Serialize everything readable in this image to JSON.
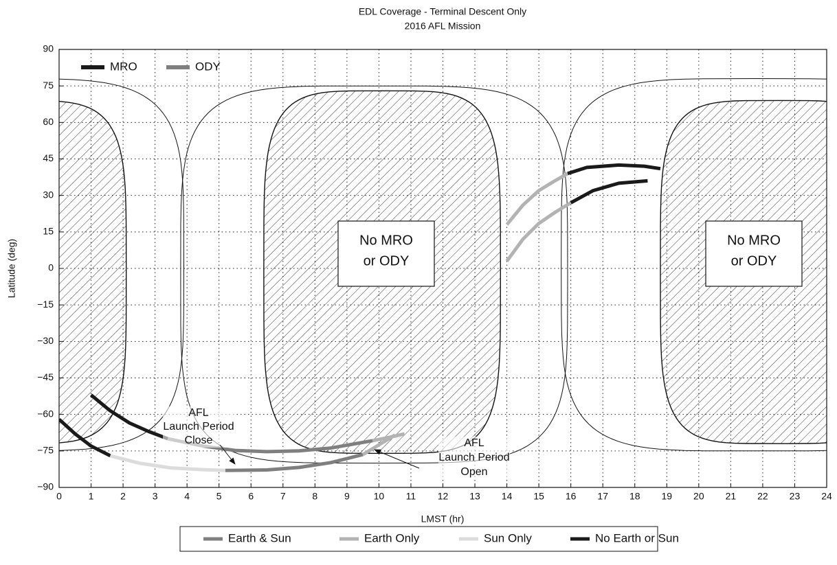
{
  "chart_data": {
    "type": "line",
    "title": "EDL Coverage - Terminal Descent Only",
    "subtitle": "2016 AFL Mission",
    "xlabel": "LMST (hr)",
    "ylabel": "Latitude (deg)",
    "xlim": [
      0,
      24
    ],
    "ylim": [
      -90,
      90
    ],
    "xticks": [
      0,
      1,
      2,
      3,
      4,
      5,
      6,
      7,
      8,
      9,
      10,
      11,
      12,
      13,
      14,
      15,
      16,
      17,
      18,
      19,
      20,
      21,
      22,
      23,
      24
    ],
    "yticks": [
      {
        "value": -90,
        "label": "−90"
      },
      {
        "value": -75,
        "label": "−75"
      },
      {
        "value": -60,
        "label": "−60"
      },
      {
        "value": -45,
        "label": "−45"
      },
      {
        "value": -30,
        "label": "−30"
      },
      {
        "value": -15,
        "label": "−15"
      },
      0,
      15,
      30,
      45,
      60,
      75,
      90
    ],
    "grid": true,
    "orbiters": [
      {
        "name": "MRO",
        "color": "#1a1a1a"
      },
      {
        "name": "ODY",
        "color": "#7f7f7f"
      }
    ],
    "conditions": [
      {
        "name": "Earth & Sun",
        "color": "#7f7f7f"
      },
      {
        "name": "Earth Only",
        "color": "#b3b3b3"
      },
      {
        "name": "Sun Only",
        "color": "#dcdcdc"
      },
      {
        "name": "No Earth or Sun",
        "color": "#1a1a1a"
      }
    ],
    "no_coverage_regions": [
      {
        "xrange": [
          6.4,
          13.8
        ],
        "yrange": [
          -76,
          73
        ]
      },
      {
        "xrange": [
          18.8,
          26.1
        ],
        "yrange": [
          -72,
          69
        ]
      }
    ],
    "contours": [
      {
        "xrange": [
          3.8,
          15.9
        ],
        "yrange": [
          -80,
          75
        ]
      },
      {
        "xrange": [
          15.7,
          27.9
        ],
        "yrange": [
          -75,
          78
        ]
      }
    ],
    "tracks": [
      {
        "segments": [
          {
            "color": "#1a1a1a",
            "x": [
              1.0,
              1.6,
              2.2,
              2.8,
              3.4
            ],
            "y": [
              -52,
              -58.5,
              -63.5,
              -67,
              -70
            ]
          },
          {
            "color": "#7f7f7f",
            "x": [
              3.4,
              4.5,
              5.5,
              6.5,
              7.5,
              8.5,
              9.8
            ],
            "y": [
              -70,
              -73,
              -74.8,
              -75.3,
              -75,
              -73.8,
              -70.8
            ]
          },
          {
            "color": "#b3b3b3",
            "x": [
              9.8,
              10.3,
              10.8
            ],
            "y": [
              -70.8,
              -69.5,
              -68
            ]
          },
          {
            "color": "#b3b3b3",
            "x": [
              14.0,
              14.5,
              15.0,
              15.5,
              15.9
            ],
            "y": [
              18,
              26,
              32,
              36,
              39
            ]
          },
          {
            "color": "#1a1a1a",
            "x": [
              15.9,
              16.5,
              17.5,
              18.3,
              18.8
            ],
            "y": [
              39,
              41.5,
              42.5,
              42,
              41
            ]
          }
        ]
      },
      {
        "segments": [
          {
            "color": "#1a1a1a",
            "x": [
              0,
              0.5,
              1.0,
              1.6
            ],
            "y": [
              -62,
              -68,
              -73,
              -77
            ]
          },
          {
            "color": "#dcdcdc",
            "x": [
              1.6,
              2.5,
              3.5,
              4.5,
              5.2
            ],
            "y": [
              -77,
              -80,
              -82,
              -82.7,
              -83
            ]
          },
          {
            "color": "#7f7f7f",
            "x": [
              5.2,
              6.5,
              7.5,
              8.5,
              9.5
            ],
            "y": [
              -83,
              -82.8,
              -81.8,
              -79.8,
              -76.5
            ]
          },
          {
            "color": "#b3b3b3",
            "x": [
              9.5,
              10.0,
              10.5
            ],
            "y": [
              -76.5,
              -72.5,
              -68.5
            ]
          },
          {
            "color": "#b3b3b3",
            "x": [
              14.0,
              14.5,
              15.0,
              15.5,
              16.0
            ],
            "y": [
              3,
              12,
              18.5,
              23,
              27
            ]
          },
          {
            "color": "#1a1a1a",
            "x": [
              16.0,
              16.7,
              17.5,
              18.4
            ],
            "y": [
              27,
              32,
              35,
              36
            ]
          }
        ]
      }
    ],
    "annotations": [
      {
        "lines": [
          "No MRO",
          "or ODY"
        ]
      },
      {
        "lines": [
          "No MRO",
          "or ODY"
        ]
      },
      {
        "lines": [
          "AFL",
          "Launch Period",
          "Close"
        ]
      },
      {
        "lines": [
          "AFL",
          "Launch Period",
          "Open"
        ]
      }
    ]
  }
}
